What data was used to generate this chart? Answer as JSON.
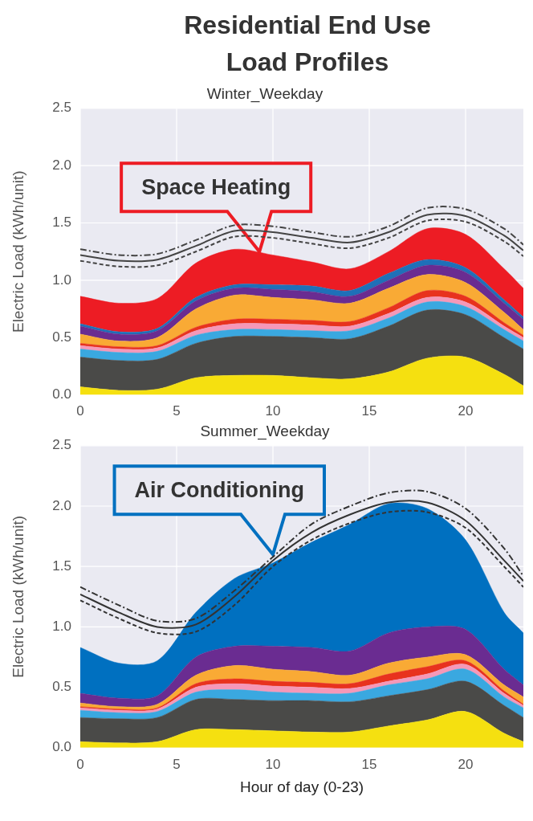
{
  "chart_data": [
    {
      "type": "area",
      "title": "Residential End Use Load Profiles",
      "subtitle": "Winter_Weekday",
      "ylabel": "Electric Load (kWh/unit)",
      "stacked": true,
      "grid": true,
      "legend": false,
      "marker": "none",
      "x": [
        0,
        2,
        4,
        6,
        8,
        10,
        12,
        14,
        16,
        18,
        20,
        22,
        23
      ],
      "xlim": [
        0,
        23
      ],
      "xticks": [
        0,
        5,
        10,
        15,
        20
      ],
      "ylim": [
        0,
        2.5
      ],
      "yticks": [
        {
          "value": 0,
          "label": "0.0"
        },
        {
          "value": 0.5,
          "label": "0.5"
        },
        {
          "value": 1,
          "label": "1.0"
        },
        {
          "value": 1.5,
          "label": "1.5"
        },
        {
          "value": 2,
          "label": "2.0"
        },
        {
          "value": 2.5,
          "label": "2.5"
        }
      ],
      "annotations": [
        {
          "text": "Space Heating",
          "x": 9.3,
          "y": 1.25
        }
      ],
      "series": [
        {
          "color": "#f5e010",
          "values": [
            0.07,
            0.04,
            0.05,
            0.15,
            0.17,
            0.17,
            0.15,
            0.14,
            0.2,
            0.32,
            0.33,
            0.18,
            0.08
          ]
        },
        {
          "color": "#4a4a48",
          "values": [
            0.26,
            0.26,
            0.26,
            0.3,
            0.34,
            0.34,
            0.35,
            0.35,
            0.4,
            0.42,
            0.37,
            0.32,
            0.32
          ]
        },
        {
          "color": "#3aa8e0",
          "values": [
            0.07,
            0.07,
            0.07,
            0.07,
            0.06,
            0.06,
            0.06,
            0.07,
            0.07,
            0.07,
            0.07,
            0.07,
            0.07
          ]
        },
        {
          "color": "#f598b8",
          "values": [
            0.03,
            0.03,
            0.03,
            0.04,
            0.05,
            0.05,
            0.05,
            0.04,
            0.04,
            0.04,
            0.04,
            0.03,
            0.03
          ]
        },
        {
          "color": "#e8321e",
          "values": [
            0.02,
            0.02,
            0.02,
            0.03,
            0.04,
            0.04,
            0.04,
            0.04,
            0.05,
            0.06,
            0.05,
            0.03,
            0.02
          ]
        },
        {
          "color": "#f9aa35",
          "values": [
            0.08,
            0.05,
            0.07,
            0.16,
            0.21,
            0.19,
            0.18,
            0.16,
            0.17,
            0.14,
            0.12,
            0.09,
            0.05
          ]
        },
        {
          "color": "#6a2c91",
          "values": [
            0.07,
            0.06,
            0.06,
            0.07,
            0.06,
            0.07,
            0.07,
            0.06,
            0.07,
            0.08,
            0.09,
            0.08,
            0.09
          ]
        },
        {
          "color": "#1f70b8",
          "values": [
            0.02,
            0.02,
            0.02,
            0.03,
            0.03,
            0.04,
            0.05,
            0.05,
            0.06,
            0.05,
            0.04,
            0.03,
            0.02
          ]
        },
        {
          "color": "#ed1c24",
          "values": [
            0.24,
            0.25,
            0.26,
            0.3,
            0.31,
            0.26,
            0.21,
            0.19,
            0.19,
            0.27,
            0.29,
            0.27,
            0.25
          ]
        },
        {
          "type": "line",
          "color": "#444444",
          "line_style": "dashed",
          "values": [
            1.17,
            1.12,
            1.13,
            1.25,
            1.38,
            1.37,
            1.32,
            1.28,
            1.37,
            1.52,
            1.51,
            1.34,
            1.21
          ]
        },
        {
          "type": "line",
          "color": "#444444",
          "line_style": "solid",
          "values": [
            1.22,
            1.17,
            1.18,
            1.3,
            1.43,
            1.42,
            1.37,
            1.33,
            1.42,
            1.57,
            1.56,
            1.39,
            1.26
          ]
        },
        {
          "type": "line",
          "color": "#444444",
          "line_style": "dotted",
          "values": [
            1.27,
            1.22,
            1.23,
            1.35,
            1.48,
            1.47,
            1.42,
            1.38,
            1.47,
            1.63,
            1.62,
            1.45,
            1.31
          ]
        }
      ]
    },
    {
      "type": "area",
      "subtitle": "Summer_Weekday",
      "xlabel": "Hour of day (0-23)",
      "ylabel": "Electric Load (kWh/unit)",
      "stacked": true,
      "grid": true,
      "legend": false,
      "marker": "none",
      "x": [
        0,
        2,
        4,
        6,
        8,
        10,
        12,
        14,
        16,
        18,
        20,
        22,
        23
      ],
      "xlim": [
        0,
        23
      ],
      "xticks": [
        0,
        5,
        10,
        15,
        20
      ],
      "ylim": [
        0,
        2.5
      ],
      "yticks": [
        {
          "value": 0,
          "label": "0.0"
        },
        {
          "value": 0.5,
          "label": "0.5"
        },
        {
          "value": 1,
          "label": "1.0"
        },
        {
          "value": 1.5,
          "label": "1.5"
        },
        {
          "value": 2,
          "label": "2.0"
        },
        {
          "value": 2.5,
          "label": "2.5"
        }
      ],
      "annotations": [
        {
          "text": "Air Conditioning",
          "x": 10,
          "y": 1.6
        }
      ],
      "series": [
        {
          "color": "#f5e010",
          "values": [
            0.05,
            0.04,
            0.05,
            0.15,
            0.15,
            0.14,
            0.13,
            0.13,
            0.18,
            0.23,
            0.3,
            0.12,
            0.05
          ]
        },
        {
          "color": "#4a4a48",
          "values": [
            0.2,
            0.2,
            0.2,
            0.25,
            0.25,
            0.25,
            0.26,
            0.25,
            0.25,
            0.25,
            0.25,
            0.23,
            0.2
          ]
        },
        {
          "color": "#3aa8e0",
          "values": [
            0.06,
            0.05,
            0.05,
            0.06,
            0.08,
            0.07,
            0.06,
            0.07,
            0.09,
            0.09,
            0.1,
            0.07,
            0.08
          ]
        },
        {
          "color": "#f598b8",
          "values": [
            0.02,
            0.02,
            0.02,
            0.04,
            0.05,
            0.05,
            0.05,
            0.04,
            0.03,
            0.04,
            0.04,
            0.03,
            0.02
          ]
        },
        {
          "color": "#e8321e",
          "values": [
            0.01,
            0.01,
            0.01,
            0.03,
            0.04,
            0.04,
            0.04,
            0.04,
            0.06,
            0.06,
            0.03,
            0.02,
            0.01
          ]
        },
        {
          "color": "#f9aa35",
          "values": [
            0.03,
            0.02,
            0.03,
            0.07,
            0.11,
            0.1,
            0.09,
            0.07,
            0.09,
            0.08,
            0.05,
            0.05,
            0.06
          ]
        },
        {
          "color": "#6a2c91",
          "values": [
            0.08,
            0.07,
            0.07,
            0.15,
            0.16,
            0.19,
            0.2,
            0.2,
            0.25,
            0.25,
            0.21,
            0.13,
            0.1
          ]
        },
        {
          "color": "#0070c0",
          "values": [
            0.38,
            0.29,
            0.29,
            0.37,
            0.56,
            0.69,
            0.87,
            1.05,
            1.07,
            0.98,
            0.74,
            0.47,
            0.43
          ]
        },
        {
          "type": "line",
          "color": "#333333",
          "line_style": "dashed",
          "values": [
            1.22,
            1.07,
            0.95,
            0.96,
            1.18,
            1.5,
            1.72,
            1.86,
            1.95,
            1.95,
            1.82,
            1.5,
            1.33
          ]
        },
        {
          "type": "line",
          "color": "#333333",
          "line_style": "solid",
          "values": [
            1.27,
            1.12,
            1.0,
            1.02,
            1.25,
            1.55,
            1.78,
            1.93,
            2.03,
            2.03,
            1.88,
            1.55,
            1.38
          ]
        },
        {
          "type": "line",
          "color": "#333333",
          "line_style": "dotted",
          "values": [
            1.33,
            1.18,
            1.05,
            1.07,
            1.3,
            1.58,
            1.85,
            2.0,
            2.11,
            2.12,
            1.98,
            1.65,
            1.42
          ]
        }
      ]
    }
  ]
}
